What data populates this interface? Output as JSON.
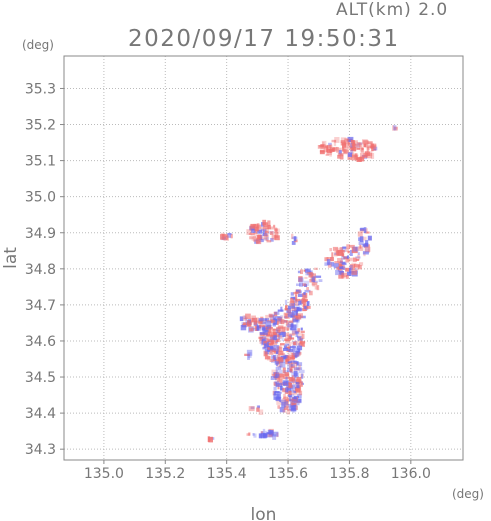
{
  "header": {
    "altitude_label": "ALT(km) 2.0",
    "timestamp": "2020/09/17 19:50:31"
  },
  "chart_data": {
    "type": "heatmap",
    "title": "2020/09/17 19:50:31",
    "xlabel": "lon",
    "ylabel": "lat",
    "x_unit": "(deg)",
    "y_unit": "(deg)",
    "xlim": [
      134.87,
      136.17
    ],
    "ylim": [
      34.27,
      35.39
    ],
    "x_ticks": [
      "135.0",
      "135.2",
      "135.4",
      "135.6",
      "135.8",
      "136.0"
    ],
    "y_ticks": [
      "34.3",
      "34.4",
      "34.5",
      "34.6",
      "34.7",
      "34.8",
      "34.9",
      "35.0",
      "35.1",
      "35.2",
      "35.3"
    ],
    "grid": true,
    "colors": {
      "positive": "#f07070",
      "negative": "#6b6bef",
      "frame": "#888888"
    },
    "clusters": [
      {
        "lon": 135.58,
        "lat": 34.61,
        "r_lon": 0.07,
        "r_lat": 0.08,
        "n": 260,
        "mix": 0.5
      },
      {
        "lon": 135.6,
        "lat": 34.48,
        "r_lon": 0.05,
        "r_lat": 0.08,
        "n": 170,
        "mix": 0.5
      },
      {
        "lon": 135.63,
        "lat": 34.7,
        "r_lon": 0.04,
        "r_lat": 0.04,
        "n": 60,
        "mix": 0.5
      },
      {
        "lon": 135.48,
        "lat": 34.65,
        "r_lon": 0.04,
        "r_lat": 0.02,
        "n": 50,
        "mix": 0.5
      },
      {
        "lon": 135.8,
        "lat": 35.13,
        "r_lon": 0.1,
        "r_lat": 0.03,
        "n": 110,
        "mix": 0.85
      },
      {
        "lon": 135.52,
        "lat": 34.9,
        "r_lon": 0.05,
        "r_lat": 0.03,
        "n": 60,
        "mix": 0.75
      },
      {
        "lon": 135.78,
        "lat": 34.82,
        "r_lon": 0.06,
        "r_lat": 0.05,
        "n": 80,
        "mix": 0.55
      },
      {
        "lon": 135.85,
        "lat": 34.88,
        "r_lon": 0.02,
        "r_lat": 0.04,
        "n": 25,
        "mix": 0.6
      },
      {
        "lon": 135.67,
        "lat": 34.77,
        "r_lon": 0.04,
        "r_lat": 0.04,
        "n": 35,
        "mix": 0.5
      },
      {
        "lon": 135.4,
        "lat": 34.89,
        "r_lon": 0.02,
        "r_lat": 0.01,
        "n": 8,
        "mix": 0.3
      },
      {
        "lon": 135.52,
        "lat": 34.34,
        "r_lon": 0.05,
        "r_lat": 0.01,
        "n": 25,
        "mix": 0.3
      },
      {
        "lon": 135.5,
        "lat": 34.41,
        "r_lon": 0.02,
        "r_lat": 0.01,
        "n": 6,
        "mix": 0.7
      },
      {
        "lon": 135.95,
        "lat": 35.19,
        "r_lon": 0.01,
        "r_lat": 0.005,
        "n": 4,
        "mix": 0.9
      },
      {
        "lon": 135.62,
        "lat": 34.88,
        "r_lon": 0.01,
        "r_lat": 0.02,
        "n": 5,
        "mix": 0.5
      },
      {
        "lon": 135.35,
        "lat": 34.33,
        "r_lon": 0.01,
        "r_lat": 0.01,
        "n": 4,
        "mix": 0.5
      },
      {
        "lon": 135.47,
        "lat": 34.56,
        "r_lon": 0.01,
        "r_lat": 0.01,
        "n": 4,
        "mix": 0.3
      }
    ]
  }
}
